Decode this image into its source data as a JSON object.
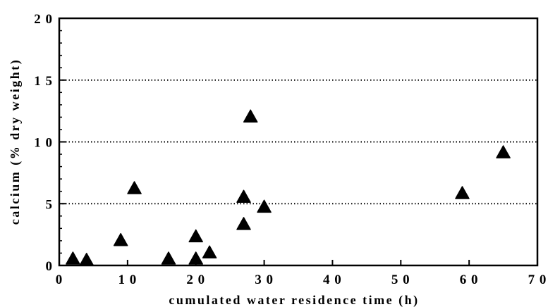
{
  "chart_data": {
    "type": "scatter",
    "title": "",
    "xlabel": "cumulated water residence time (h)",
    "ylabel": "calcium (% dry weight)",
    "xlim": [
      0,
      70
    ],
    "ylim": [
      0,
      20
    ],
    "xticks": [
      "0",
      "1 0",
      "2 0",
      "3 0",
      "4 0",
      "5 0",
      "6 0",
      "7 0"
    ],
    "yticks": [
      "0",
      "5",
      "1 0",
      "1 5",
      "2 0"
    ],
    "grid": "dotted horizontal at 5, 10, 15",
    "marker": "triangle",
    "marker_color": "#000000",
    "series": [
      {
        "x": [
          2,
          4,
          9,
          11,
          16,
          20,
          20,
          22,
          27,
          27,
          28,
          30,
          59,
          65
        ],
        "y": [
          0.5,
          0.4,
          2.0,
          6.2,
          0.5,
          0.5,
          2.3,
          1.0,
          3.3,
          5.5,
          12.0,
          4.7,
          5.8,
          9.1
        ]
      }
    ]
  }
}
